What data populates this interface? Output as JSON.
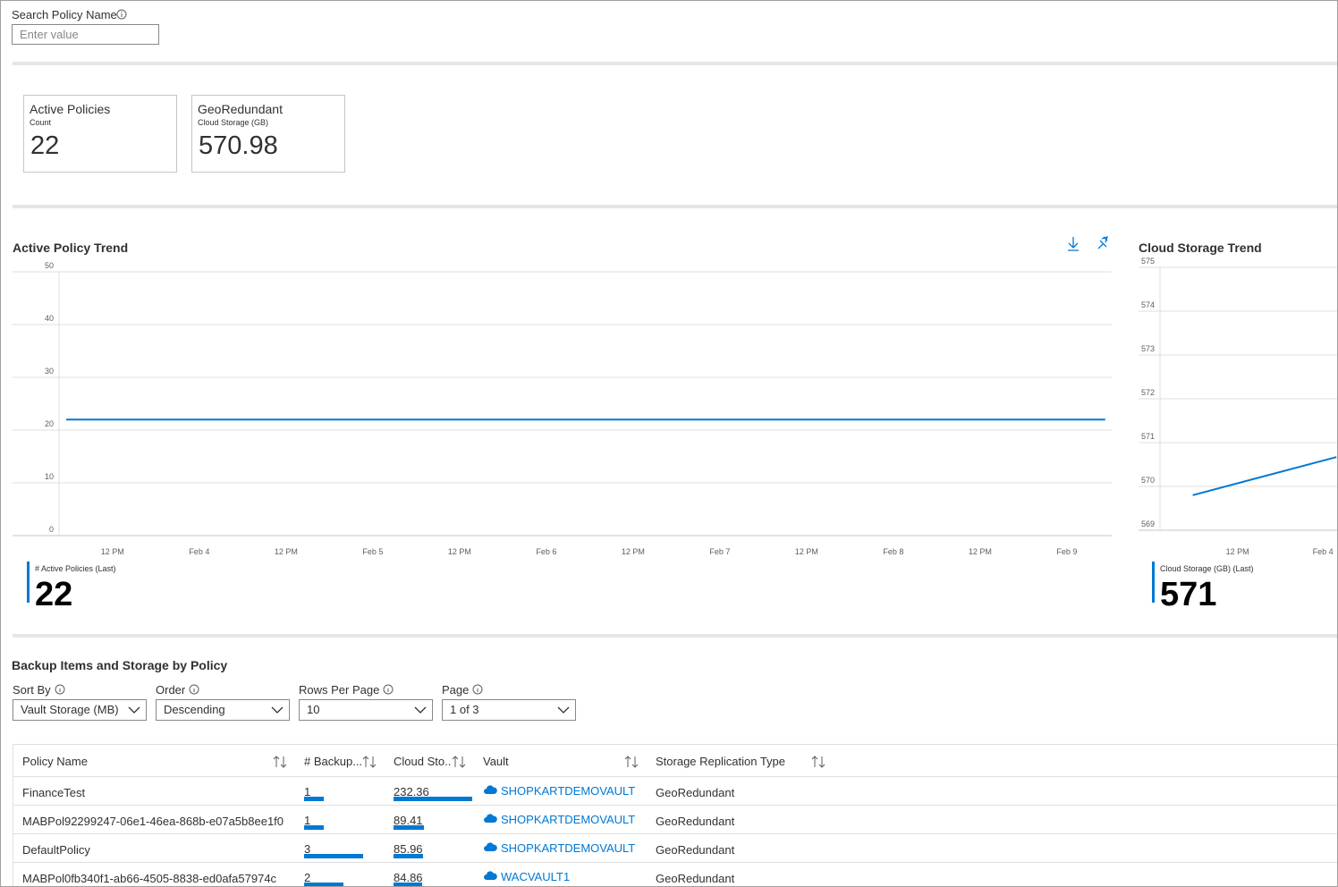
{
  "search": {
    "label": "Search Policy Name",
    "placeholder": "Enter value"
  },
  "tiles": [
    {
      "title": "Active Policies",
      "subtitle": "Count",
      "value": 22
    },
    {
      "title": "GeoRedundant",
      "subtitle": "Cloud Storage (GB)",
      "value": 570.98
    }
  ],
  "chart_data": [
    {
      "type": "line",
      "title": "Active Policy Trend",
      "x": [
        5.6,
        149.3
      ],
      "series": [
        {
          "name": "# Active Policies (Last)",
          "color": "#0078d4",
          "values": [
            22,
            22
          ]
        }
      ],
      "xlim": [
        4.6,
        150.2
      ],
      "xticks": [
        {
          "value": 12,
          "label": "12 PM"
        },
        {
          "value": 24,
          "label": "Feb 4"
        },
        {
          "value": 36,
          "label": "12 PM"
        },
        {
          "value": 48,
          "label": "Feb 5"
        },
        {
          "value": 60,
          "label": "12 PM"
        },
        {
          "value": 72,
          "label": "Feb 6"
        },
        {
          "value": 84,
          "label": "12 PM"
        },
        {
          "value": 96,
          "label": "Feb 7"
        },
        {
          "value": 108,
          "label": "12 PM"
        },
        {
          "value": 120,
          "label": "Feb 8"
        },
        {
          "value": 132,
          "label": "12 PM"
        },
        {
          "value": 144,
          "label": "Feb 9"
        }
      ],
      "ylim": [
        0,
        50
      ],
      "yticks": [
        0,
        10,
        20,
        30,
        40,
        50
      ],
      "grid": true,
      "summary_value": 22
    },
    {
      "type": "line",
      "title": "Cloud Storage Trend",
      "x": [
        5.7,
        25.9
      ],
      "series": [
        {
          "name": "Cloud Storage (GB) (Last)",
          "color": "#0078d4",
          "values": [
            569.8,
            570.67
          ]
        }
      ],
      "xlim": [
        1.1,
        26
      ],
      "xticks": [
        {
          "value": 12,
          "label": "12 PM"
        },
        {
          "value": 24,
          "label": "Feb 4"
        }
      ],
      "ylim": [
        569,
        575
      ],
      "yticks": [
        569,
        570,
        571,
        572,
        573,
        574,
        575
      ],
      "grid": true,
      "summary_value": 571
    }
  ],
  "table_section": {
    "title": "Backup Items and Storage by Policy",
    "filters": [
      {
        "label": "Sort By",
        "value": "Vault Storage (MB)"
      },
      {
        "label": "Order",
        "value": "Descending"
      },
      {
        "label": "Rows Per Page",
        "value": "10"
      },
      {
        "label": "Page",
        "value": "1 of 3"
      }
    ],
    "columns": [
      "Policy Name",
      "# Backup...",
      "Cloud Sto..",
      "Vault",
      "Storage Replication Type"
    ],
    "rows": [
      [
        "FinanceTest",
        1,
        232.36,
        "SHOPKARTDEMOVAULT",
        "GeoRedundant"
      ],
      [
        "MABPol92299247-06e1-46ea-868b-e07a5b8ee1f0",
        1,
        89.41,
        "SHOPKARTDEMOVAULT",
        "GeoRedundant"
      ],
      [
        "DefaultPolicy",
        3,
        85.96,
        "SHOPKARTDEMOVAULT",
        "GeoRedundant"
      ],
      [
        "MABPol0fb340f1-ab66-4505-8838-ed0afa57974c",
        2,
        84.86,
        "WACVAULT1",
        "GeoRedundant"
      ]
    ]
  }
}
